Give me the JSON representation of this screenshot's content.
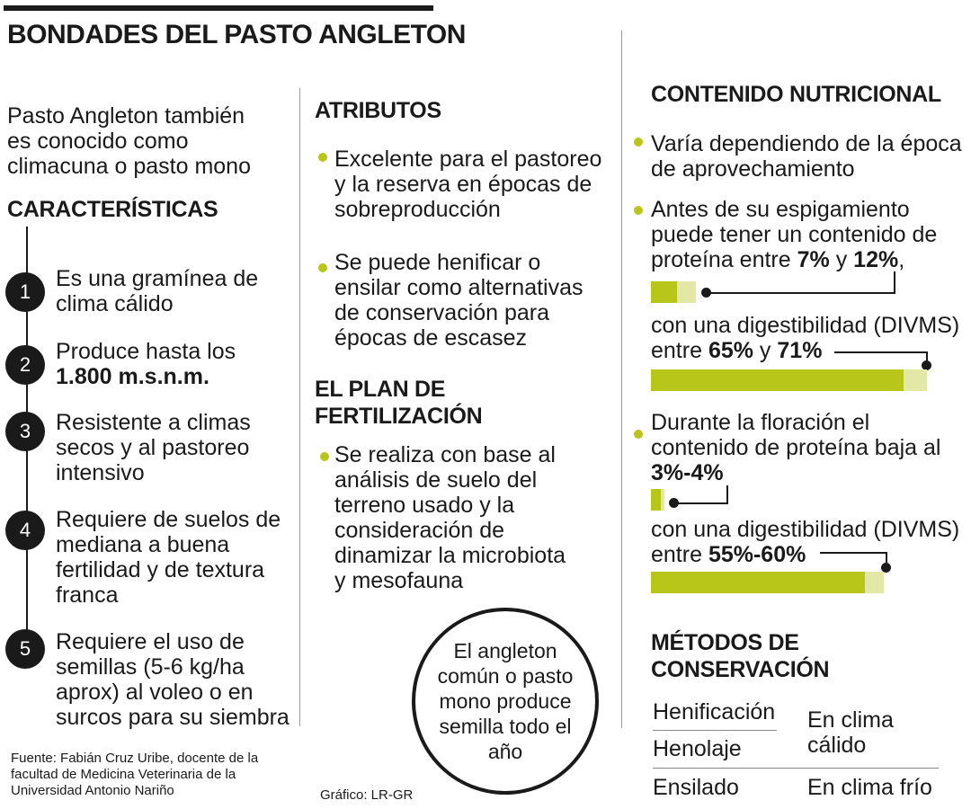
{
  "header": {
    "title": "BONDADES DEL PASTO ANGLETON"
  },
  "intro": {
    "lines": [
      "Pasto Angleton también",
      "es conocido como",
      "climacuna o pasto mono"
    ]
  },
  "caracteristicas": {
    "heading": "CARACTERÍSTICAS",
    "items": [
      {
        "num": "1",
        "lines": [
          "Es una gramínea de",
          "clima cálido"
        ]
      },
      {
        "num": "2",
        "lines": [
          "Produce hasta los"
        ],
        "bold": "1.800 m.s.n.m."
      },
      {
        "num": "3",
        "lines": [
          "Resistente a climas",
          "secos y al pastoreo",
          "intensivo"
        ]
      },
      {
        "num": "4",
        "lines": [
          "Requiere de suelos de",
          "mediana a buena",
          "fertilidad y de textura",
          "franca"
        ]
      },
      {
        "num": "5",
        "lines": [
          "Requiere el uso de",
          "semillas (5-6 kg/ha",
          "aprox) al voleo o en",
          "surcos para su siembra"
        ]
      }
    ]
  },
  "atributos": {
    "heading": "ATRIBUTOS",
    "items": [
      [
        "Excelente para el pastoreo",
        "y la reserva en épocas de",
        "sobreproducción"
      ],
      [
        "Se puede henificar o",
        "ensilar como alternativas",
        "de conservación para",
        "épocas de escasez"
      ]
    ]
  },
  "plan": {
    "heading": [
      "EL PLAN DE",
      "FERTILIZACIÓN"
    ],
    "lines": [
      "Se realiza con base al",
      "análisis de suelo del",
      "terreno usado y la",
      "consideración de",
      "dinamizar la microbiota",
      "y mesofauna"
    ]
  },
  "circle_note": {
    "lines": [
      "El angleton",
      "común o pasto",
      "mono produce",
      "semilla todo el",
      "año"
    ]
  },
  "nutricional": {
    "heading": "CONTENIDO NUTRICIONAL",
    "p1": [
      "Varía dependiendo de la época",
      "de aprovechamiento"
    ],
    "p2": [
      "Antes de su espigamiento",
      "puede tener un contenido de"
    ],
    "p2_last": {
      "pre": "proteína entre ",
      "a": "7%",
      "mid": " y ",
      "b": "12%",
      "post": ","
    },
    "p2_dig": {
      "line1": "con una digestibilidad (DIVMS)",
      "pre": "entre ",
      "a": "65%",
      "mid": " y ",
      "b": "71%"
    },
    "p3": [
      "Durante la floración el",
      "contenido de proteína baja al"
    ],
    "p3_bold": "3%-4%",
    "p3_dig": {
      "line1": "con una digestibilidad (DIVMS)",
      "pre": "entre ",
      "val": "55%-60%"
    },
    "bars": {
      "protein_pre": {
        "low": 7,
        "high": 12
      },
      "digest_pre": {
        "low": 65,
        "high": 71
      },
      "protein_flor": {
        "low": 3,
        "high": 4
      },
      "digest_flor": {
        "low": 55,
        "high": 60
      }
    }
  },
  "metodos": {
    "heading": [
      "MÉTODOS DE",
      "CONSERVACIÓN"
    ],
    "rows": [
      {
        "name": "Henificación"
      },
      {
        "name": "Henolaje"
      },
      {
        "name": "Ensilado",
        "value": "En clima frío"
      }
    ],
    "warm_value": [
      "En clima",
      "cálido"
    ]
  },
  "footer": {
    "source": [
      "Fuente: Fabián Cruz Uribe, docente de la",
      "facultad de Medicina Veterinaria de la",
      "Universidad Antonio Nariño"
    ],
    "credit": "Gráfico: LR-GR"
  },
  "colors": {
    "accent": "#b8c61a",
    "accent_light": "#e3e8a6",
    "dark": "#1a1a1a"
  }
}
